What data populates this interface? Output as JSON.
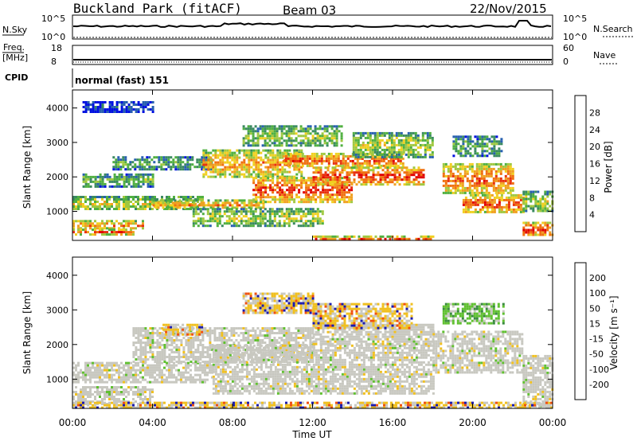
{
  "header": {
    "station": "Buckland Park (fitACF)",
    "beam": "Beam 03",
    "date": "22/Nov/2015"
  },
  "noise_panel": {
    "left_label": "N.Sky",
    "left_ticks": [
      "10^5",
      "10^0"
    ],
    "right_label": "N.Search",
    "right_ticks": [
      "10^5",
      "10^0"
    ]
  },
  "freq_panel": {
    "left_label": "Freq.",
    "left_unit": "[MHz]",
    "left_ticks": [
      "18",
      "8"
    ],
    "right_label": "Nave",
    "right_ticks": [
      "60",
      "0"
    ]
  },
  "cpid": {
    "label": "CPID",
    "value": "normal (fast) 151"
  },
  "x_axis": {
    "label": "Time UT",
    "ticks": [
      "00:00",
      "04:00",
      "08:00",
      "12:00",
      "16:00",
      "20:00",
      "00:00"
    ]
  },
  "chart_data": [
    {
      "type": "heatmap",
      "panel": "power",
      "ylabel": "Slant Range [km]",
      "yticks": [
        "1000",
        "2000",
        "3000",
        "4000"
      ],
      "y_tick_values": [
        1000,
        2000,
        3000,
        4000
      ],
      "ylim": [
        180,
        4500
      ],
      "xlim_hours": [
        0,
        24
      ],
      "colorbar_label": "Power [dB]",
      "colorbar_ticks": [
        "4",
        "8",
        "12",
        "16",
        "20",
        "24",
        "28"
      ],
      "colorbar_colors": [
        "#0010e0",
        "#2860b0",
        "#3a8a60",
        "#50b040",
        "#a0c840",
        "#f0d020",
        "#f0a020",
        "#f07010",
        "#e83010",
        "#e00000"
      ],
      "bands": [
        {
          "t0": 0.0,
          "t1": 6.5,
          "r0": 1050,
          "r1": 1450,
          "level": 0.55
        },
        {
          "t0": 0.0,
          "t1": 3.5,
          "r0": 500,
          "r1": 750,
          "level": 0.75
        },
        {
          "t0": 0.0,
          "t1": 3.0,
          "r0": 350,
          "r1": 500,
          "level": 0.85
        },
        {
          "t0": 0.5,
          "t1": 4.0,
          "r0": 1750,
          "r1": 2100,
          "level": 0.4
        },
        {
          "t0": 2.0,
          "t1": 7.0,
          "r0": 2250,
          "r1": 2600,
          "level": 0.35
        },
        {
          "t0": 4.0,
          "t1": 9.5,
          "r0": 1100,
          "r1": 1350,
          "level": 0.7
        },
        {
          "t0": 6.5,
          "t1": 11.5,
          "r0": 2000,
          "r1": 2800,
          "level": 0.7
        },
        {
          "t0": 9.0,
          "t1": 14.0,
          "r0": 1300,
          "r1": 2000,
          "level": 0.9
        },
        {
          "t0": 10.5,
          "t1": 16.5,
          "r0": 2300,
          "r1": 2700,
          "level": 0.85
        },
        {
          "t0": 12.0,
          "t1": 17.5,
          "r0": 1800,
          "r1": 2300,
          "level": 0.95
        },
        {
          "t0": 8.5,
          "t1": 13.5,
          "r0": 2900,
          "r1": 3500,
          "level": 0.45
        },
        {
          "t0": 14.0,
          "t1": 18.0,
          "r0": 2600,
          "r1": 3300,
          "level": 0.5
        },
        {
          "t0": 6.0,
          "t1": 12.5,
          "r0": 600,
          "r1": 1100,
          "level": 0.5
        },
        {
          "t0": 12.0,
          "t1": 18.0,
          "r0": 180,
          "r1": 300,
          "level": 0.85
        },
        {
          "t0": 18.5,
          "t1": 22.0,
          "r0": 1500,
          "r1": 2400,
          "level": 0.8
        },
        {
          "t0": 19.5,
          "t1": 22.5,
          "r0": 1000,
          "r1": 1500,
          "level": 0.85
        },
        {
          "t0": 19.0,
          "t1": 21.5,
          "r0": 2600,
          "r1": 3200,
          "level": 0.35
        },
        {
          "t0": 22.5,
          "t1": 24.0,
          "r0": 300,
          "r1": 700,
          "level": 0.95
        },
        {
          "t0": 22.5,
          "t1": 24.0,
          "r0": 1000,
          "r1": 1600,
          "level": 0.5
        },
        {
          "t0": 0.5,
          "t1": 4.0,
          "r0": 3900,
          "r1": 4200,
          "level": 0.1
        }
      ]
    },
    {
      "type": "heatmap",
      "panel": "velocity",
      "ylabel": "Slant Range [km]",
      "yticks": [
        "1000",
        "2000",
        "3000",
        "4000"
      ],
      "y_tick_values": [
        1000,
        2000,
        3000,
        4000
      ],
      "ylim": [
        180,
        4500
      ],
      "xlim_hours": [
        0,
        24
      ],
      "colorbar_label": "Velocity [m s⁻¹]",
      "colorbar_ticks": [
        "200",
        "100",
        "50",
        "15",
        "-15",
        "-50",
        "-100",
        "-200"
      ],
      "colorbar_colors": [
        "#1a1ab0",
        "#2850c0",
        "#3a8a40",
        "#60c030",
        "#a8e070",
        "#c8c8c0",
        "#f0c020",
        "#f09010",
        "#f05010",
        "#e00000"
      ],
      "bands": [
        {
          "t0": 0.0,
          "t1": 7.0,
          "r0": 900,
          "r1": 1500,
          "kind": "gray"
        },
        {
          "t0": 0.0,
          "t1": 4.0,
          "r0": 300,
          "r1": 800,
          "kind": "gray"
        },
        {
          "t0": 3.0,
          "t1": 12.0,
          "r0": 1500,
          "r1": 2500,
          "kind": "gray"
        },
        {
          "t0": 7.0,
          "t1": 18.0,
          "r0": 600,
          "r1": 2000,
          "kind": "gray"
        },
        {
          "t0": 12.0,
          "t1": 18.0,
          "r0": 2000,
          "r1": 2600,
          "kind": "gray"
        },
        {
          "t0": 18.0,
          "t1": 22.5,
          "r0": 1200,
          "r1": 2400,
          "kind": "gray"
        },
        {
          "t0": 22.5,
          "t1": 24.0,
          "r0": 250,
          "r1": 1700,
          "kind": "gray"
        },
        {
          "t0": 8.5,
          "t1": 12.0,
          "r0": 2900,
          "r1": 3500,
          "kind": "neg"
        },
        {
          "t0": 12.0,
          "t1": 17.0,
          "r0": 2500,
          "r1": 3200,
          "kind": "neg"
        },
        {
          "t0": 18.5,
          "t1": 21.5,
          "r0": 2600,
          "r1": 3200,
          "kind": "pos"
        },
        {
          "t0": 4.5,
          "t1": 6.5,
          "r0": 2300,
          "r1": 2600,
          "kind": "neg"
        },
        {
          "t0": 0.0,
          "t1": 24.0,
          "r0": 180,
          "r1": 350,
          "kind": "neg"
        }
      ]
    }
  ]
}
